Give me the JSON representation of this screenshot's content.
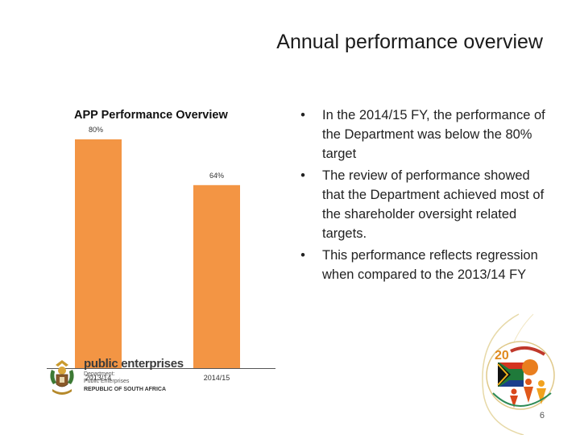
{
  "slide_title": "Annual performance overview",
  "chart_data": {
    "type": "bar",
    "title": "APP Performance Overview",
    "categories": [
      "2013/14",
      "2014/15"
    ],
    "values": [
      80,
      64
    ],
    "data_labels": [
      "80%",
      "64%"
    ],
    "ylim": [
      0,
      80
    ],
    "grid": false,
    "colors": {
      "bar": "#f39544"
    }
  },
  "bullets": [
    "In the 2014/15 FY, the performance of the Department was below the 80% target",
    "The review of performance showed that the Department achieved most of the shareholder oversight related targets.",
    "This performance reflects regression when compared to the 2013/14 FY"
  ],
  "bullet_glyph": "•",
  "logo": {
    "name": "public enterprises",
    "line1": "Department:",
    "line2": "Public Enterprises",
    "line3": "REPUBLIC OF SOUTH AFRICA"
  },
  "emblem_icon": "20-years-of-freedom-emblem",
  "page_number": "6"
}
